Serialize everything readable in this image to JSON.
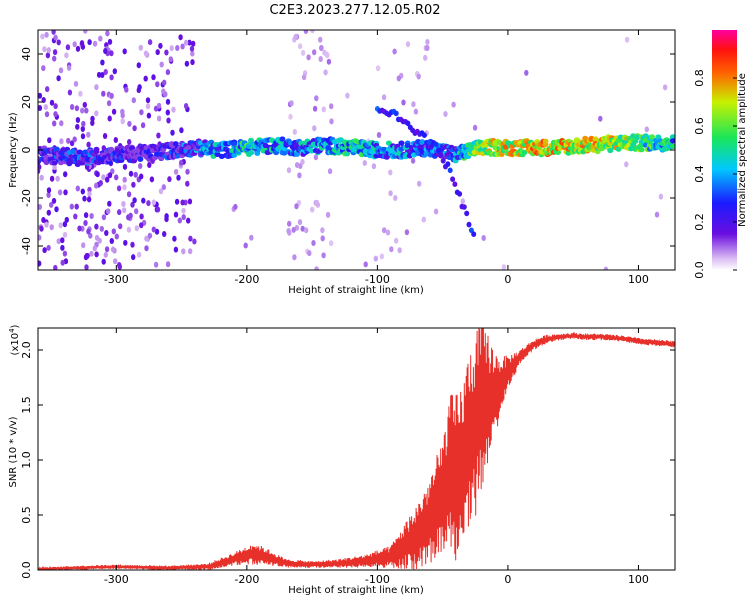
{
  "figure": {
    "title": "C2E3.2023.277.12.05.R02"
  },
  "chart_data": [
    {
      "type": "heatmap",
      "xlabel": "Height of straight line (km)",
      "ylabel": "Frequency (Hz)",
      "xlim": [
        -360,
        128
      ],
      "ylim": [
        -50,
        50
      ],
      "x_ticks": [
        -300,
        -200,
        -100,
        0,
        100
      ],
      "x_tick_labels": [
        "-300",
        "-200",
        "-100",
        "0",
        "100"
      ],
      "y_ticks": [
        -40,
        -20,
        0,
        20,
        40
      ],
      "y_tick_labels": [
        "-40",
        "-20",
        "0",
        "20",
        "40"
      ],
      "colorbar": {
        "label": "Normalized spectral amplitude",
        "range": [
          0,
          1
        ],
        "ticks": [
          0,
          0.2,
          0.4,
          0.6,
          0.8
        ],
        "tick_labels": [
          "0.0",
          "0.2",
          "0.4",
          "0.6",
          "0.8"
        ],
        "colormap": "rainbow-white-to-magenta"
      },
      "ridge": {
        "x": [
          -360,
          -330,
          -300,
          -270,
          -240,
          -220,
          -200,
          -180,
          -160,
          -140,
          -120,
          -100,
          -80,
          -60,
          -40,
          -20,
          0,
          30,
          60,
          90,
          128
        ],
        "y": [
          -2,
          -3,
          -2,
          -1,
          1,
          0,
          1,
          2,
          1,
          2,
          1,
          0,
          0,
          1,
          -2,
          1,
          1,
          1,
          2,
          3,
          3
        ],
        "amplitude": [
          0.35,
          0.4,
          0.35,
          0.3,
          0.45,
          0.55,
          0.6,
          0.55,
          0.5,
          0.55,
          0.6,
          0.55,
          0.5,
          0.45,
          0.5,
          0.8,
          0.85,
          0.9,
          0.85,
          0.8,
          0.55
        ]
      },
      "descending_branch": {
        "x": [
          -100,
          -85,
          -70,
          -55,
          -45,
          -38,
          -30,
          -25
        ],
        "y": [
          18,
          14,
          8,
          1,
          -8,
          -18,
          -30,
          -38
        ]
      }
    },
    {
      "type": "line",
      "xlabel": "Height of straight line (km)",
      "ylabel": "SNR (10 * v/v)",
      "y_scale_label": "(x10",
      "y_scale_exponent": "4",
      "xlim": [
        -360,
        128
      ],
      "ylim": [
        0,
        2.2
      ],
      "x_ticks": [
        -300,
        -200,
        -100,
        0,
        100
      ],
      "x_tick_labels": [
        "-300",
        "-200",
        "-100",
        "0",
        "100"
      ],
      "y_ticks": [
        0,
        0.5,
        1.0,
        1.5,
        2.0
      ],
      "y_tick_labels": [
        "0.0",
        "0.5",
        "1.0",
        "1.5",
        "2.0"
      ],
      "color": "#e8302a",
      "series": [
        {
          "x": [
            -360,
            -330,
            -300,
            -260,
            -230,
            -210,
            -195,
            -185,
            -170,
            -150,
            -130,
            -110,
            -90,
            -70,
            -60,
            -50,
            -45,
            -40,
            -35,
            -30,
            -25,
            -20,
            -15,
            -10,
            -5,
            0,
            10,
            20,
            30,
            40,
            50,
            60,
            70,
            80,
            90,
            100,
            110,
            120,
            128
          ],
          "y": [
            0.01,
            0.02,
            0.03,
            0.02,
            0.03,
            0.1,
            0.15,
            0.12,
            0.06,
            0.05,
            0.06,
            0.08,
            0.12,
            0.3,
            0.45,
            0.65,
            0.9,
            0.8,
            0.95,
            1.2,
            1.3,
            1.5,
            1.55,
            1.6,
            1.7,
            1.8,
            1.95,
            2.05,
            2.1,
            2.12,
            2.13,
            2.12,
            2.12,
            2.11,
            2.1,
            2.08,
            2.07,
            2.06,
            2.05
          ],
          "spread": [
            0.01,
            0.02,
            0.02,
            0.02,
            0.03,
            0.06,
            0.1,
            0.08,
            0.04,
            0.03,
            0.04,
            0.06,
            0.1,
            0.3,
            0.4,
            0.55,
            0.7,
            0.8,
            0.75,
            0.8,
            0.85,
            0.8,
            0.6,
            0.4,
            0.25,
            0.15,
            0.06,
            0.05,
            0.04,
            0.03,
            0.03,
            0.03,
            0.03,
            0.03,
            0.03,
            0.03,
            0.03,
            0.03,
            0.03
          ]
        }
      ]
    }
  ]
}
